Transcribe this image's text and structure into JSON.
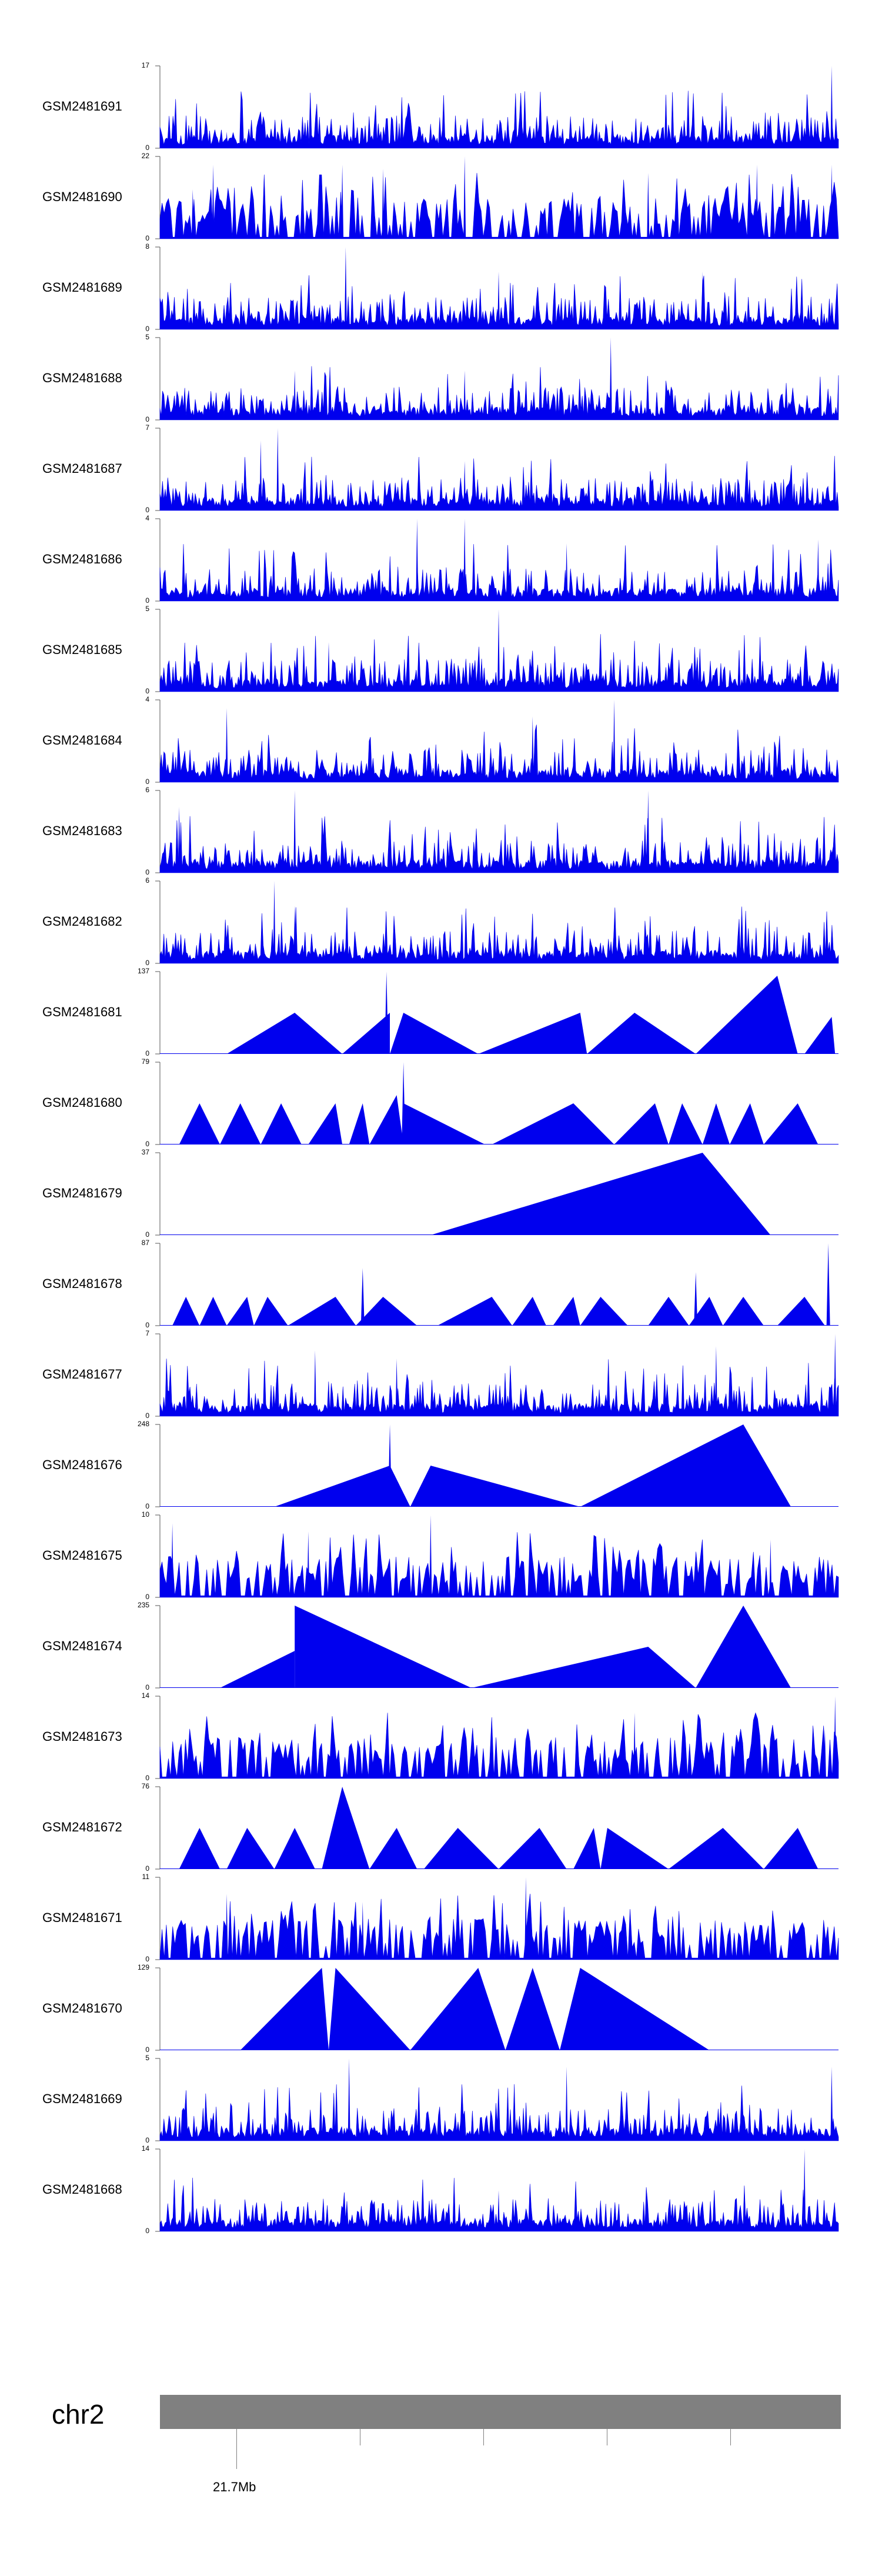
{
  "chart_data": {
    "type": "area",
    "color": "#0000ee",
    "chromosome": "chr2",
    "position_label": "21.7Mb",
    "tracks": [
      {
        "name": "GSM2481691",
        "ymax": 17,
        "ymin": 0,
        "profile": "dense",
        "peaks": [
          [
            0.99,
            1.0
          ],
          [
            0.72,
            0.25
          ],
          [
            0.4,
            0.22
          ],
          [
            0.1,
            0.2
          ]
        ]
      },
      {
        "name": "GSM2481690",
        "ymax": 22,
        "ymin": 0,
        "profile": "spiky",
        "peaks": [
          [
            0.05,
            0.6
          ],
          [
            0.08,
            0.9
          ],
          [
            0.45,
            1.0
          ],
          [
            0.27,
            0.9
          ],
          [
            0.33,
            0.85
          ],
          [
            0.72,
            0.8
          ],
          [
            0.88,
            0.9
          ],
          [
            0.99,
            0.9
          ]
        ]
      },
      {
        "name": "GSM2481689",
        "ymax": 8,
        "ymin": 0,
        "profile": "dense",
        "peaks": [
          [
            0.275,
            1.0
          ],
          [
            0.5,
            0.7
          ],
          [
            0.8,
            0.7
          ]
        ]
      },
      {
        "name": "GSM2481688",
        "ymax": 5,
        "ymin": 0,
        "profile": "dense",
        "peaks": [
          [
            0.665,
            1.0
          ],
          [
            0.2,
            0.6
          ],
          [
            0.45,
            0.6
          ]
        ]
      },
      {
        "name": "GSM2481687",
        "ymax": 7,
        "ymin": 0,
        "profile": "dense",
        "peaks": [
          [
            0.175,
            1.0
          ],
          [
            0.15,
            0.85
          ],
          [
            0.45,
            0.6
          ]
        ]
      },
      {
        "name": "GSM2481686",
        "ymax": 4,
        "ymin": 0,
        "profile": "dense",
        "peaks": [
          [
            0.38,
            1.0
          ],
          [
            0.45,
            1.0
          ],
          [
            0.97,
            0.75
          ],
          [
            0.6,
            0.7
          ]
        ]
      },
      {
        "name": "GSM2481685",
        "ymax": 5,
        "ymin": 0,
        "profile": "dense",
        "peaks": [
          [
            0.5,
            1.0
          ],
          [
            0.65,
            0.7
          ],
          [
            0.25,
            0.6
          ]
        ]
      },
      {
        "name": "GSM2481684",
        "ymax": 4,
        "ymin": 0,
        "profile": "dense",
        "peaks": [
          [
            0.1,
            0.9
          ],
          [
            0.55,
            0.8
          ],
          [
            0.67,
            1.0
          ]
        ]
      },
      {
        "name": "GSM2481683",
        "ymax": 6,
        "ymin": 0,
        "profile": "dense",
        "peaks": [
          [
            0.2,
            1.0
          ],
          [
            0.72,
            1.0
          ],
          [
            0.03,
            0.8
          ]
        ]
      },
      {
        "name": "GSM2481682",
        "ymax": 6,
        "ymin": 0,
        "profile": "dense",
        "peaks": [
          [
            0.17,
            1.0
          ],
          [
            0.2,
            0.7
          ]
        ]
      },
      {
        "name": "GSM2481681",
        "ymax": 137,
        "ymin": 0,
        "profile": "tri",
        "tris": [
          [
            0.1,
            0.2,
            0.27,
            0.5
          ],
          [
            0.27,
            0.34,
            0.34,
            0.5
          ],
          [
            0.34,
            0.36,
            0.47,
            0.5
          ],
          [
            0.47,
            0.62,
            0.63,
            0.5
          ],
          [
            0.63,
            0.7,
            0.79,
            0.5
          ],
          [
            0.79,
            0.91,
            0.94,
            0.95
          ],
          [
            0.95,
            0.99,
            0.995,
            0.45
          ]
        ],
        "peaks": [
          [
            0.335,
            1.0
          ]
        ]
      },
      {
        "name": "GSM2481680",
        "ymax": 79,
        "ymin": 0,
        "profile": "tri",
        "tris": [
          [
            0.03,
            0.06,
            0.09,
            0.5
          ],
          [
            0.09,
            0.12,
            0.15,
            0.5
          ],
          [
            0.15,
            0.18,
            0.21,
            0.5
          ],
          [
            0.22,
            0.26,
            0.27,
            0.5
          ],
          [
            0.28,
            0.3,
            0.31,
            0.5
          ],
          [
            0.31,
            0.35,
            0.36,
            0.6
          ],
          [
            0.36,
            0.36,
            0.48,
            0.5
          ],
          [
            0.49,
            0.61,
            0.67,
            0.5
          ],
          [
            0.67,
            0.73,
            0.75,
            0.5
          ],
          [
            0.75,
            0.77,
            0.8,
            0.5
          ],
          [
            0.8,
            0.82,
            0.84,
            0.5
          ],
          [
            0.84,
            0.87,
            0.89,
            0.5
          ],
          [
            0.89,
            0.94,
            0.97,
            0.5
          ]
        ],
        "peaks": [
          [
            0.36,
            1.0
          ]
        ]
      },
      {
        "name": "GSM2481679",
        "ymax": 37,
        "ymin": 0,
        "profile": "tri",
        "tris": [
          [
            0.4,
            0.8,
            0.9,
            1.0
          ]
        ],
        "peaks": []
      },
      {
        "name": "GSM2481678",
        "ymax": 87,
        "ymin": 0,
        "profile": "tri",
        "tris": [
          [
            0.02,
            0.04,
            0.06,
            0.35
          ],
          [
            0.06,
            0.08,
            0.1,
            0.35
          ],
          [
            0.1,
            0.13,
            0.14,
            0.35
          ],
          [
            0.14,
            0.16,
            0.19,
            0.35
          ],
          [
            0.19,
            0.26,
            0.29,
            0.35
          ],
          [
            0.29,
            0.33,
            0.38,
            0.35
          ],
          [
            0.41,
            0.49,
            0.52,
            0.35
          ],
          [
            0.52,
            0.55,
            0.57,
            0.35
          ],
          [
            0.58,
            0.61,
            0.62,
            0.35
          ],
          [
            0.62,
            0.65,
            0.69,
            0.35
          ],
          [
            0.72,
            0.75,
            0.78,
            0.35
          ],
          [
            0.78,
            0.81,
            0.83,
            0.35
          ],
          [
            0.83,
            0.86,
            0.89,
            0.35
          ],
          [
            0.91,
            0.95,
            0.98,
            0.35
          ]
        ],
        "peaks": [
          [
            0.3,
            0.7
          ],
          [
            0.985,
            1.0
          ],
          [
            0.79,
            0.65
          ]
        ]
      },
      {
        "name": "GSM2481677",
        "ymax": 7,
        "ymin": 0,
        "profile": "dense",
        "peaks": [
          [
            0.995,
            1.0
          ],
          [
            0.82,
            0.85
          ],
          [
            0.23,
            0.8
          ],
          [
            0.35,
            0.7
          ]
        ]
      },
      {
        "name": "GSM2481676",
        "ymax": 248,
        "ymin": 0,
        "profile": "tri",
        "tris": [
          [
            0.17,
            0.34,
            0.37,
            0.5
          ],
          [
            0.37,
            0.4,
            0.62,
            0.5
          ],
          [
            0.62,
            0.86,
            0.93,
            1.0
          ]
        ],
        "peaks": [
          [
            0.34,
            1.0
          ]
        ]
      },
      {
        "name": "GSM2481675",
        "ymax": 10,
        "ymin": 0,
        "profile": "spiky",
        "peaks": [
          [
            0.4,
            1.0
          ],
          [
            0.02,
            0.9
          ],
          [
            0.22,
            0.8
          ],
          [
            0.9,
            0.7
          ]
        ]
      },
      {
        "name": "GSM2481674",
        "ymax": 235,
        "ymin": 0,
        "profile": "tri",
        "tris": [
          [
            0.09,
            0.2,
            0.2,
            0.45
          ],
          [
            0.2,
            0.2,
            0.46,
            1.0
          ],
          [
            0.46,
            0.72,
            0.79,
            0.5
          ],
          [
            0.79,
            0.86,
            0.93,
            1.0
          ]
        ],
        "peaks": []
      },
      {
        "name": "GSM2481673",
        "ymax": 14,
        "ymin": 0,
        "profile": "spiky",
        "peaks": [
          [
            0.995,
            1.0
          ],
          [
            0.7,
            0.8
          ],
          [
            0.07,
            0.6
          ],
          [
            0.98,
            0.6
          ]
        ]
      },
      {
        "name": "GSM2481672",
        "ymax": 76,
        "ymin": 0,
        "profile": "tri",
        "tris": [
          [
            0.03,
            0.06,
            0.09,
            0.5
          ],
          [
            0.1,
            0.13,
            0.17,
            0.5
          ],
          [
            0.17,
            0.2,
            0.23,
            0.5
          ],
          [
            0.24,
            0.27,
            0.31,
            1.0
          ],
          [
            0.31,
            0.35,
            0.38,
            0.5
          ],
          [
            0.39,
            0.44,
            0.5,
            0.5
          ],
          [
            0.5,
            0.56,
            0.6,
            0.5
          ],
          [
            0.61,
            0.64,
            0.65,
            0.5
          ],
          [
            0.65,
            0.66,
            0.75,
            0.5
          ],
          [
            0.75,
            0.83,
            0.89,
            0.5
          ],
          [
            0.89,
            0.94,
            0.97,
            0.5
          ]
        ],
        "peaks": []
      },
      {
        "name": "GSM2481671",
        "ymax": 11,
        "ymin": 0,
        "profile": "spiky",
        "peaks": [
          [
            0.54,
            1.0
          ],
          [
            0.1,
            0.8
          ],
          [
            0.3,
            0.7
          ]
        ]
      },
      {
        "name": "GSM2481670",
        "ymax": 129,
        "ymin": 0,
        "profile": "tri",
        "tris": [
          [
            0.12,
            0.24,
            0.25,
            1.0
          ],
          [
            0.25,
            0.26,
            0.37,
            1.0
          ],
          [
            0.37,
            0.47,
            0.51,
            1.0
          ],
          [
            0.51,
            0.55,
            0.59,
            1.0
          ],
          [
            0.59,
            0.62,
            0.81,
            1.0
          ]
        ],
        "peaks": []
      },
      {
        "name": "GSM2481669",
        "ymax": 5,
        "ymin": 0,
        "profile": "dense",
        "peaks": [
          [
            0.28,
            1.0
          ],
          [
            0.6,
            0.9
          ],
          [
            0.99,
            0.9
          ]
        ]
      },
      {
        "name": "GSM2481668",
        "ymax": 14,
        "ymin": 0,
        "profile": "dense",
        "peaks": [
          [
            0.95,
            1.0
          ],
          [
            0.5,
            0.5
          ]
        ]
      }
    ]
  }
}
